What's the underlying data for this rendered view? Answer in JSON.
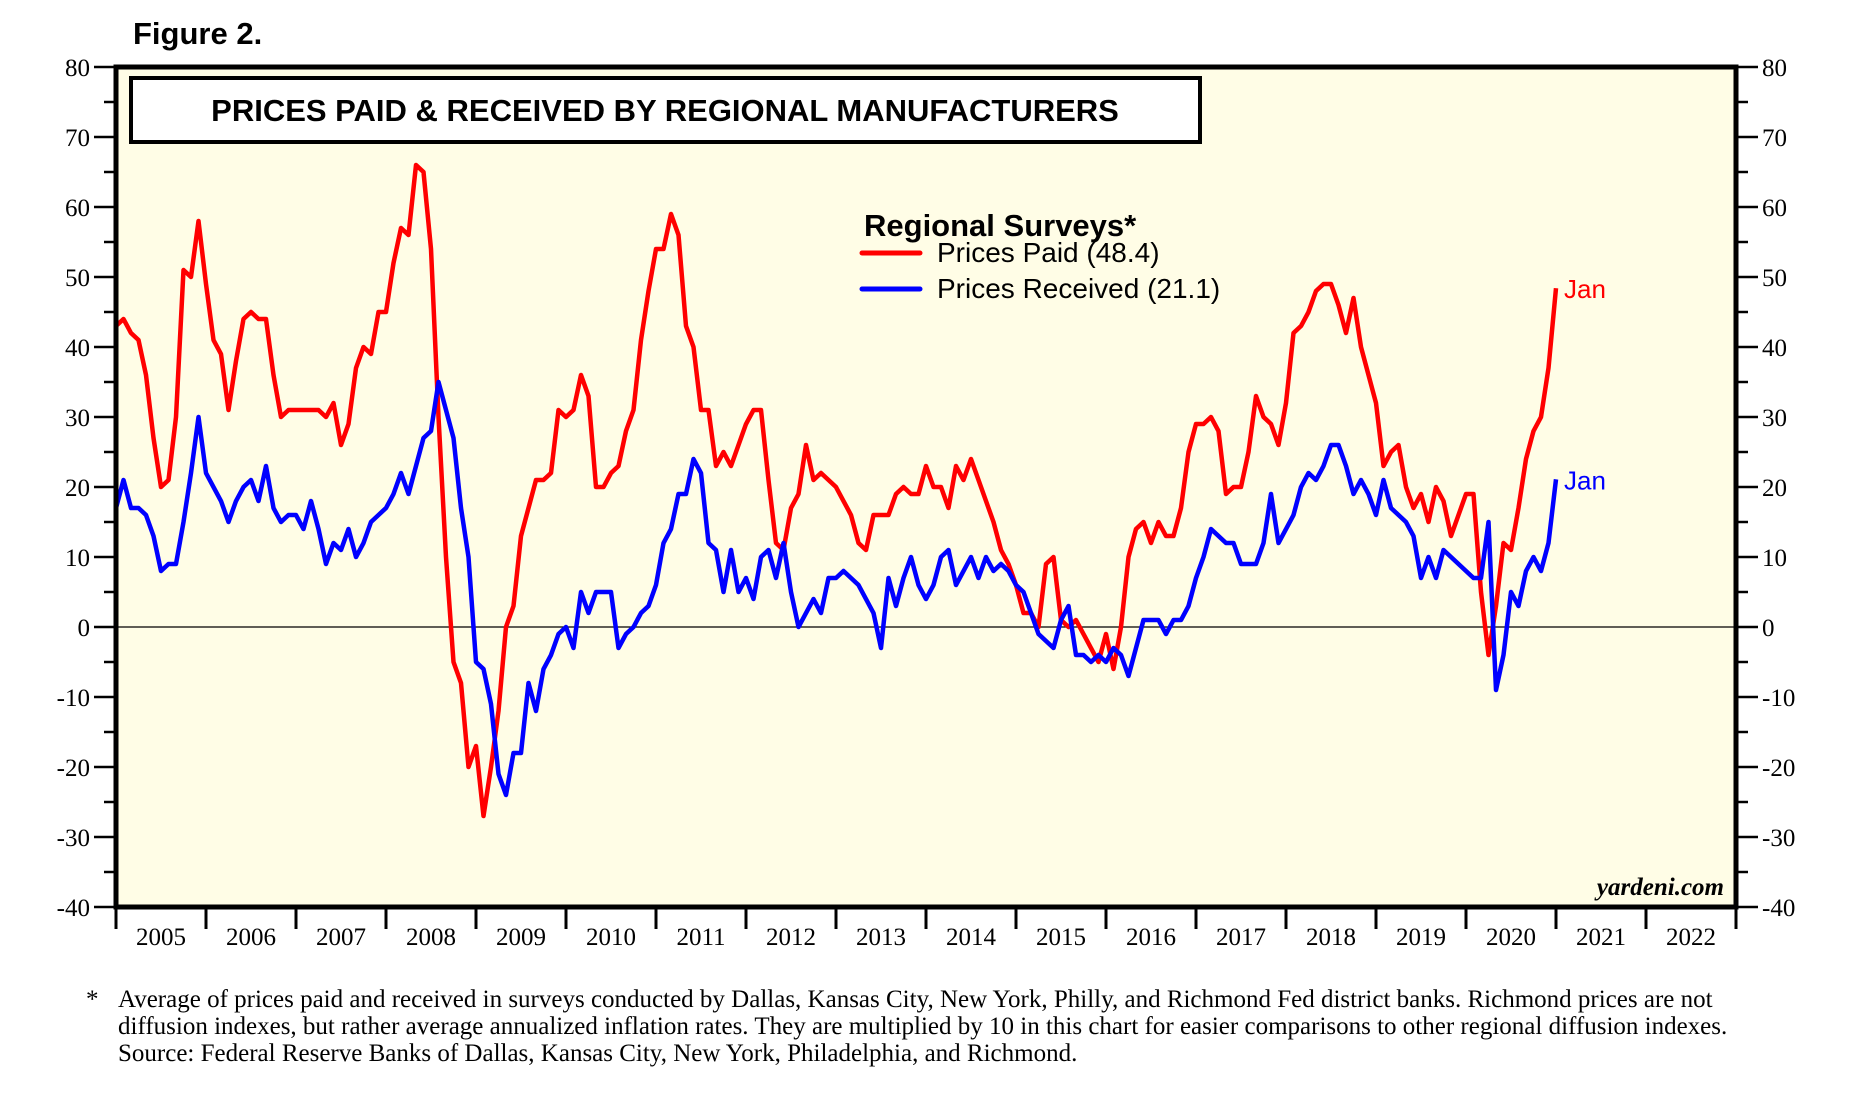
{
  "figure_label": "Figure 2.",
  "footnote": {
    "marker": "*",
    "text": "Average of prices paid and received in surveys conducted by Dallas, Kansas City, New York, Philly, and Richmond Fed district banks. Richmond prices are not diffusion indexes, but rather average annualized inflation rates. They are multiplied by 10 in this chart for easier comparisons to other regional diffusion indexes.",
    "source": "Source: Federal Reserve Banks of Dallas, Kansas City, New York, Philadelphia, and Richmond."
  },
  "colors": {
    "background": "#fffde6",
    "prices_paid": "#ff0000",
    "prices_received": "#0000ff"
  },
  "chart_data": {
    "type": "line",
    "title": "PRICES PAID & RECEIVED BY REGIONAL MANUFACTURERS",
    "legend_title": "Regional Surveys*",
    "legend_position": "top-center",
    "watermark": "yardeni.com",
    "xlabel": "",
    "ylabel": "",
    "frequency": "monthly",
    "x_start": "2005-01",
    "x_end": "2021-01",
    "xlim": [
      2005,
      2023
    ],
    "x_tick_labels": [
      "2005",
      "2006",
      "2007",
      "2008",
      "2009",
      "2010",
      "2011",
      "2012",
      "2013",
      "2014",
      "2015",
      "2016",
      "2017",
      "2018",
      "2019",
      "2020",
      "2021",
      "2022"
    ],
    "ylim": [
      -40,
      80
    ],
    "y_ticks": [
      -40,
      -30,
      -20,
      -10,
      0,
      10,
      20,
      30,
      40,
      50,
      60,
      70,
      80
    ],
    "y_tick_labels": [
      "-40",
      "-30",
      "-20",
      "-10",
      "0",
      "10",
      "20",
      "30",
      "40",
      "50",
      "60",
      "70",
      "80"
    ],
    "zero_line": true,
    "grid": false,
    "series": [
      {
        "name": "Prices Paid",
        "legend_label": "Prices Paid (48.4)",
        "latest": 48.4,
        "end_label": "Jan",
        "values": [
          43,
          44,
          42,
          41,
          36,
          27,
          20,
          21,
          30,
          51,
          50,
          58,
          49,
          41,
          39,
          31,
          38,
          44,
          45,
          44,
          44,
          36,
          30,
          31,
          31,
          31,
          31,
          31,
          30,
          32,
          26,
          29,
          37,
          40,
          39,
          45,
          45,
          52,
          57,
          56,
          66,
          65,
          54,
          30,
          10,
          -5,
          -8,
          -20,
          -17,
          -27,
          -20,
          -12,
          0,
          3,
          13,
          17,
          21,
          21,
          22,
          31,
          30,
          31,
          36,
          33,
          20,
          20,
          22,
          23,
          28,
          31,
          41,
          48,
          54,
          54,
          59,
          56,
          43,
          40,
          31,
          31,
          23,
          25,
          23,
          26,
          29,
          31,
          31,
          21,
          12,
          11,
          17,
          19,
          26,
          21,
          22,
          21,
          20,
          18,
          16,
          12,
          11,
          16,
          16,
          16,
          19,
          20,
          19,
          19,
          23,
          20,
          20,
          17,
          23,
          21,
          24,
          21,
          18,
          15,
          11,
          9,
          6,
          2,
          2,
          0,
          9,
          10,
          1,
          0,
          1,
          -1,
          -3,
          -5,
          -1,
          -6,
          0,
          10,
          14,
          15,
          12,
          15,
          13,
          13,
          17,
          25,
          29,
          29,
          30,
          28,
          19,
          20,
          20,
          25,
          33,
          30,
          29,
          26,
          32,
          42,
          43,
          45,
          48,
          49,
          49,
          46,
          42,
          47,
          40,
          36,
          32,
          23,
          25,
          26,
          20,
          17,
          19,
          15,
          20,
          18,
          13,
          16,
          19,
          19,
          5,
          -4,
          3,
          12,
          11,
          17,
          24,
          28,
          30,
          37,
          48.4
        ]
      },
      {
        "name": "Prices Received",
        "legend_label": "Prices Received (21.1)",
        "latest": 21.1,
        "end_label": "Jan",
        "values": [
          17,
          21,
          17,
          17,
          16,
          13,
          8,
          9,
          9,
          15,
          22,
          30,
          22,
          20,
          18,
          15,
          18,
          20,
          21,
          18,
          23,
          17,
          15,
          16,
          16,
          14,
          18,
          14,
          9,
          12,
          11,
          14,
          10,
          12,
          15,
          16,
          17,
          19,
          22,
          19,
          23,
          27,
          28,
          35,
          31,
          27,
          17,
          10,
          -5,
          -6,
          -11,
          -21,
          -24,
          -18,
          -18,
          -8,
          -12,
          -6,
          -4,
          -1,
          0,
          -3,
          5,
          2,
          5,
          5,
          5,
          -3,
          -1,
          0,
          2,
          3,
          6,
          12,
          14,
          19,
          19,
          24,
          22,
          12,
          11,
          5,
          11,
          5,
          7,
          4,
          10,
          11,
          7,
          12,
          5,
          0,
          2,
          4,
          2,
          7,
          7,
          8,
          7,
          6,
          4,
          2,
          -3,
          7,
          3,
          7,
          10,
          6,
          4,
          6,
          10,
          11,
          6,
          8,
          10,
          7,
          10,
          8,
          9,
          8,
          6,
          5,
          2,
          -1,
          -2,
          -3,
          1,
          3,
          -4,
          -4,
          -5,
          -4,
          -5,
          -3,
          -4,
          -7,
          -3,
          1,
          1,
          1,
          -1,
          1,
          1,
          3,
          7,
          10,
          14,
          13,
          12,
          12,
          9,
          9,
          9,
          12,
          19,
          12,
          14,
          16,
          20,
          22,
          21,
          23,
          26,
          26,
          23,
          19,
          21,
          19,
          16,
          21,
          17,
          16,
          15,
          13,
          7,
          10,
          7,
          11,
          10,
          9,
          8,
          7,
          7,
          15,
          -9,
          -4,
          5,
          3,
          8,
          10,
          8,
          12,
          21.1
        ]
      }
    ]
  }
}
